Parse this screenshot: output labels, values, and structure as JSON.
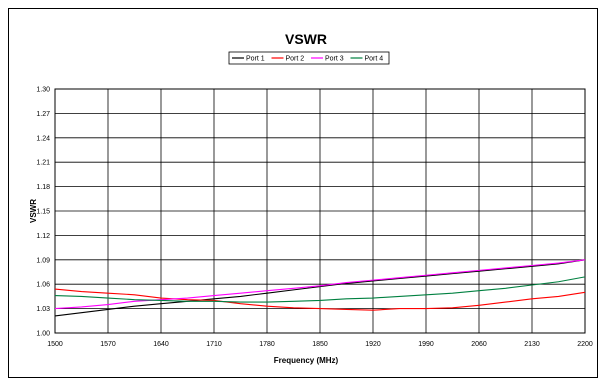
{
  "chart_data": {
    "type": "line",
    "title": "VSWR",
    "xlabel": "Frequency (MHz)",
    "ylabel": "VSWR",
    "xlim": [
      1500,
      2200
    ],
    "ylim": [
      1.0,
      1.3
    ],
    "x_ticks": [
      "1500",
      "1570",
      "1640",
      "1710",
      "1780",
      "1850",
      "1920",
      "1990",
      "2060",
      "2130",
      "2200"
    ],
    "y_ticks": [
      "1.00",
      "1.03",
      "1.06",
      "1.09",
      "1.12",
      "1.15",
      "1.18",
      "1.21",
      "1.24",
      "1.27",
      "1.30"
    ],
    "grid": true,
    "legend_position": "top",
    "x": [
      1500,
      1535,
      1570,
      1605,
      1640,
      1675,
      1710,
      1745,
      1780,
      1815,
      1850,
      1885,
      1920,
      1955,
      1990,
      2025,
      2060,
      2095,
      2130,
      2165,
      2200
    ],
    "series": [
      {
        "name": "Port 1",
        "color": "#000000",
        "values": [
          1.021,
          1.025,
          1.029,
          1.033,
          1.036,
          1.039,
          1.042,
          1.045,
          1.049,
          1.053,
          1.057,
          1.061,
          1.064,
          1.067,
          1.07,
          1.073,
          1.076,
          1.079,
          1.082,
          1.085,
          1.09
        ]
      },
      {
        "name": "Port 2",
        "color": "#ff0000",
        "values": [
          1.054,
          1.051,
          1.049,
          1.047,
          1.043,
          1.041,
          1.04,
          1.036,
          1.033,
          1.031,
          1.03,
          1.029,
          1.028,
          1.03,
          1.03,
          1.031,
          1.034,
          1.038,
          1.042,
          1.045,
          1.05
        ]
      },
      {
        "name": "Port 3",
        "color": "#ff00ff",
        "values": [
          1.03,
          1.032,
          1.035,
          1.039,
          1.041,
          1.043,
          1.046,
          1.049,
          1.052,
          1.055,
          1.058,
          1.062,
          1.065,
          1.068,
          1.071,
          1.074,
          1.077,
          1.08,
          1.083,
          1.086,
          1.09
        ]
      },
      {
        "name": "Port 4",
        "color": "#008040",
        "values": [
          1.046,
          1.045,
          1.043,
          1.041,
          1.04,
          1.039,
          1.039,
          1.038,
          1.038,
          1.039,
          1.04,
          1.042,
          1.043,
          1.045,
          1.047,
          1.049,
          1.052,
          1.055,
          1.059,
          1.063,
          1.069
        ]
      }
    ]
  }
}
